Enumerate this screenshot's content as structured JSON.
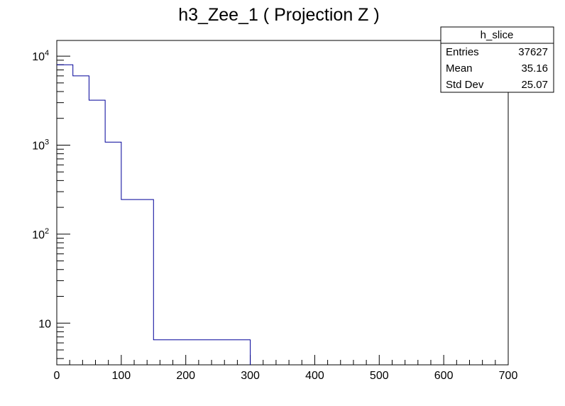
{
  "chart_data": {
    "type": "histogram",
    "title": "h3_Zee_1 ( Projection Z )",
    "xlabel": "",
    "ylabel": "",
    "xlim": [
      0,
      700
    ],
    "ylim": [
      3.4,
      15000
    ],
    "y_scale": "log",
    "x_ticks": [
      0,
      100,
      200,
      300,
      400,
      500,
      600,
      700
    ],
    "y_ticks": [
      {
        "value": 10,
        "label": "10",
        "sup": ""
      },
      {
        "value": 100,
        "label": "10",
        "sup": "2"
      },
      {
        "value": 1000,
        "label": "10",
        "sup": "3"
      },
      {
        "value": 10000,
        "label": "10",
        "sup": "4"
      }
    ],
    "line_color": "#000099",
    "grid": false,
    "series": [
      {
        "bins": [
          {
            "x0": 0,
            "x1": 25,
            "value": 8000
          },
          {
            "x0": 25,
            "x1": 50,
            "value": 6000
          },
          {
            "x0": 50,
            "x1": 75,
            "value": 3200
          },
          {
            "x0": 75,
            "x1": 100,
            "value": 1080
          },
          {
            "x0": 100,
            "x1": 150,
            "value": 245
          },
          {
            "x0": 150,
            "x1": 300,
            "value": 6.5
          }
        ]
      }
    ],
    "stats_box": {
      "name": "h_slice",
      "placement": "top-right",
      "rows": [
        {
          "label": "Entries",
          "value": "37627"
        },
        {
          "label": "Mean",
          "value": "35.16"
        },
        {
          "label": "Std Dev",
          "value": "25.07"
        }
      ]
    }
  }
}
